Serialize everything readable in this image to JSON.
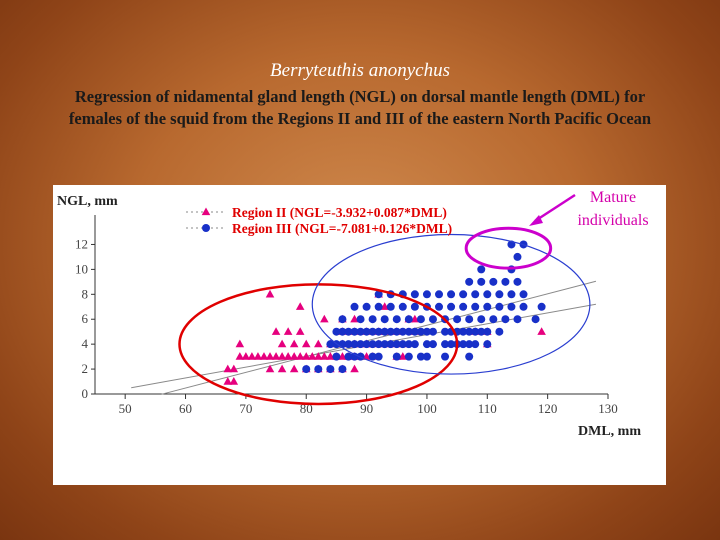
{
  "slide": {
    "species": "Berryteuthis anonychus",
    "description": "Regression of nidamental gland length (NGL) on dorsal mantle length (DML) for females of the squid from the Regions II and III of the eastern North Pacific Ocean",
    "annotation": "Mature individuals"
  },
  "colors": {
    "region2": "#e6007e",
    "region3": "#1830c8",
    "circle_red": "#e00000",
    "circle_blue": "#2a3ed0",
    "circle_magenta": "#cc00cc",
    "fit_line": "#8a8a8a"
  },
  "chart_data": {
    "type": "scatter",
    "title": "",
    "xlabel": "DML, mm",
    "ylabel": "NGL, mm",
    "xlim": [
      45,
      130
    ],
    "ylim": [
      0,
      13
    ],
    "x_ticks": [
      50,
      60,
      70,
      80,
      90,
      100,
      110,
      120,
      130
    ],
    "y_ticks": [
      0,
      2,
      4,
      6,
      8,
      10,
      12
    ],
    "grid": false,
    "legend_position": "top",
    "series": [
      {
        "name": "Region II (NGL=-3.932+0.087*DML)",
        "marker": "triangle",
        "fit": {
          "intercept": -3.932,
          "slope": 0.087
        },
        "points": [
          [
            67,
            1
          ],
          [
            68,
            1
          ],
          [
            68,
            2
          ],
          [
            67,
            2
          ],
          [
            69,
            3
          ],
          [
            70,
            3
          ],
          [
            71,
            3
          ],
          [
            72,
            3
          ],
          [
            73,
            3
          ],
          [
            74,
            3
          ],
          [
            75,
            3
          ],
          [
            76,
            3
          ],
          [
            77,
            3
          ],
          [
            78,
            3
          ],
          [
            79,
            3
          ],
          [
            80,
            3
          ],
          [
            81,
            3
          ],
          [
            82,
            3
          ],
          [
            83,
            3
          ],
          [
            84,
            3
          ],
          [
            85,
            3
          ],
          [
            86,
            3
          ],
          [
            87,
            3
          ],
          [
            88,
            3
          ],
          [
            89,
            3
          ],
          [
            90,
            3
          ],
          [
            91,
            3
          ],
          [
            69,
            4
          ],
          [
            76,
            4
          ],
          [
            78,
            4
          ],
          [
            80,
            4
          ],
          [
            82,
            4
          ],
          [
            84,
            4
          ],
          [
            86,
            4
          ],
          [
            88,
            4
          ],
          [
            90,
            4
          ],
          [
            92,
            4
          ],
          [
            94,
            4
          ],
          [
            96,
            4
          ],
          [
            80,
            2
          ],
          [
            82,
            2
          ],
          [
            84,
            2
          ],
          [
            86,
            2
          ],
          [
            88,
            2
          ],
          [
            74,
            2
          ],
          [
            76,
            2
          ],
          [
            78,
            2
          ],
          [
            75,
            5
          ],
          [
            77,
            5
          ],
          [
            79,
            5
          ],
          [
            86,
            5
          ],
          [
            88,
            5
          ],
          [
            90,
            5
          ],
          [
            92,
            5
          ],
          [
            93,
            5
          ],
          [
            95,
            5
          ],
          [
            98,
            5
          ],
          [
            108,
            5
          ],
          [
            110,
            5
          ],
          [
            119,
            5
          ],
          [
            110,
            4
          ],
          [
            97,
            6
          ],
          [
            98,
            6
          ],
          [
            86,
            6
          ],
          [
            88,
            6
          ],
          [
            74,
            8
          ],
          [
            92,
            8
          ],
          [
            93,
            7
          ],
          [
            79,
            7
          ],
          [
            83,
            6
          ],
          [
            90,
            4
          ],
          [
            95,
            3
          ],
          [
            96,
            3
          ]
        ]
      },
      {
        "name": "Region III (NGL=-7.081+0.126*DML)",
        "marker": "circle",
        "fit": {
          "intercept": -7.081,
          "slope": 0.126
        },
        "points": [
          [
            80,
            2
          ],
          [
            82,
            2
          ],
          [
            84,
            2
          ],
          [
            86,
            2
          ],
          [
            85,
            3
          ],
          [
            87,
            3
          ],
          [
            88,
            3
          ],
          [
            89,
            3
          ],
          [
            91,
            3
          ],
          [
            92,
            3
          ],
          [
            95,
            3
          ],
          [
            97,
            3
          ],
          [
            99,
            3
          ],
          [
            100,
            3
          ],
          [
            103,
            3
          ],
          [
            107,
            3
          ],
          [
            84,
            4
          ],
          [
            85,
            4
          ],
          [
            86,
            4
          ],
          [
            87,
            4
          ],
          [
            88,
            4
          ],
          [
            89,
            4
          ],
          [
            90,
            4
          ],
          [
            91,
            4
          ],
          [
            92,
            4
          ],
          [
            93,
            4
          ],
          [
            94,
            4
          ],
          [
            95,
            4
          ],
          [
            96,
            4
          ],
          [
            97,
            4
          ],
          [
            98,
            4
          ],
          [
            100,
            4
          ],
          [
            101,
            4
          ],
          [
            103,
            4
          ],
          [
            104,
            4
          ],
          [
            105,
            4
          ],
          [
            106,
            4
          ],
          [
            107,
            4
          ],
          [
            108,
            4
          ],
          [
            110,
            4
          ],
          [
            85,
            5
          ],
          [
            86,
            5
          ],
          [
            87,
            5
          ],
          [
            88,
            5
          ],
          [
            89,
            5
          ],
          [
            90,
            5
          ],
          [
            91,
            5
          ],
          [
            92,
            5
          ],
          [
            93,
            5
          ],
          [
            94,
            5
          ],
          [
            95,
            5
          ],
          [
            96,
            5
          ],
          [
            97,
            5
          ],
          [
            98,
            5
          ],
          [
            99,
            5
          ],
          [
            100,
            5
          ],
          [
            101,
            5
          ],
          [
            103,
            5
          ],
          [
            104,
            5
          ],
          [
            105,
            5
          ],
          [
            106,
            5
          ],
          [
            107,
            5
          ],
          [
            108,
            5
          ],
          [
            109,
            5
          ],
          [
            110,
            5
          ],
          [
            112,
            5
          ],
          [
            86,
            6
          ],
          [
            89,
            6
          ],
          [
            91,
            6
          ],
          [
            93,
            6
          ],
          [
            95,
            6
          ],
          [
            97,
            6
          ],
          [
            99,
            6
          ],
          [
            101,
            6
          ],
          [
            103,
            6
          ],
          [
            105,
            6
          ],
          [
            107,
            6
          ],
          [
            109,
            6
          ],
          [
            111,
            6
          ],
          [
            113,
            6
          ],
          [
            115,
            6
          ],
          [
            118,
            6
          ],
          [
            88,
            7
          ],
          [
            90,
            7
          ],
          [
            92,
            7
          ],
          [
            94,
            7
          ],
          [
            96,
            7
          ],
          [
            98,
            7
          ],
          [
            100,
            7
          ],
          [
            102,
            7
          ],
          [
            104,
            7
          ],
          [
            106,
            7
          ],
          [
            108,
            7
          ],
          [
            110,
            7
          ],
          [
            112,
            7
          ],
          [
            114,
            7
          ],
          [
            116,
            7
          ],
          [
            119,
            7
          ],
          [
            92,
            8
          ],
          [
            94,
            8
          ],
          [
            96,
            8
          ],
          [
            98,
            8
          ],
          [
            100,
            8
          ],
          [
            102,
            8
          ],
          [
            104,
            8
          ],
          [
            106,
            8
          ],
          [
            108,
            8
          ],
          [
            110,
            8
          ],
          [
            112,
            8
          ],
          [
            114,
            8
          ],
          [
            116,
            8
          ],
          [
            107,
            9
          ],
          [
            109,
            9
          ],
          [
            111,
            9
          ],
          [
            113,
            9
          ],
          [
            115,
            9
          ],
          [
            109,
            10
          ],
          [
            114,
            10
          ],
          [
            115,
            11
          ],
          [
            114,
            12
          ],
          [
            116,
            12
          ]
        ]
      }
    ],
    "highlights": [
      {
        "label": "red-ellipse",
        "cx": 82,
        "cy": 4,
        "rx": 23,
        "ry": 4.8
      },
      {
        "label": "blue-ellipse",
        "cx": 104,
        "cy": 7.2,
        "rx": 23,
        "ry": 5.6
      },
      {
        "label": "mature-ellipse",
        "cx": 113.5,
        "cy": 11.7,
        "rx": 7,
        "ry": 1.6
      }
    ]
  }
}
